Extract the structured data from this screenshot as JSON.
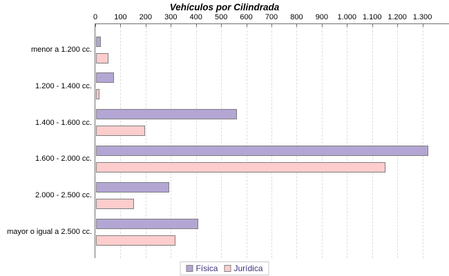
{
  "title": "Vehículos por Cilindrada",
  "colors": {
    "fisica_fill": "#b3a6d4",
    "juridica_fill": "#fdcdcd",
    "bar_border": "#7d7d7d",
    "grid": "#dcdcdc",
    "axis": "#6e6e6e",
    "legend_text": "#3e3181",
    "legend_border": "#c8c8c8",
    "text": "#000000"
  },
  "chart_data": {
    "type": "bar",
    "orientation": "horizontal",
    "title": "Vehículos por Cilindrada",
    "categories": [
      "menor a 1.200 cc.",
      "1.200 - 1.400 cc.",
      "1.400 - 1.600 cc.",
      "1.600 - 2.000 cc.",
      "2.000 - 2.500 cc.",
      "mayor o igual a 2.500 cc."
    ],
    "series": [
      {
        "name": "Física",
        "color": "#b3a6d4",
        "values": [
          20,
          70,
          560,
          1320,
          290,
          405
        ]
      },
      {
        "name": "Jurídica",
        "color": "#fdcdcd",
        "values": [
          50,
          15,
          195,
          1150,
          150,
          315
        ]
      }
    ],
    "x_ticks": [
      "0",
      "100",
      "200",
      "300",
      "400",
      "500",
      "600",
      "700",
      "800",
      "900",
      "1.000",
      "1.100",
      "1.200",
      "1.300"
    ],
    "xlim": [
      0,
      1400
    ],
    "grid": "vertical-dashed",
    "legend_position": "bottom-center",
    "legend_entries": [
      "Física",
      "Jurídica"
    ]
  }
}
